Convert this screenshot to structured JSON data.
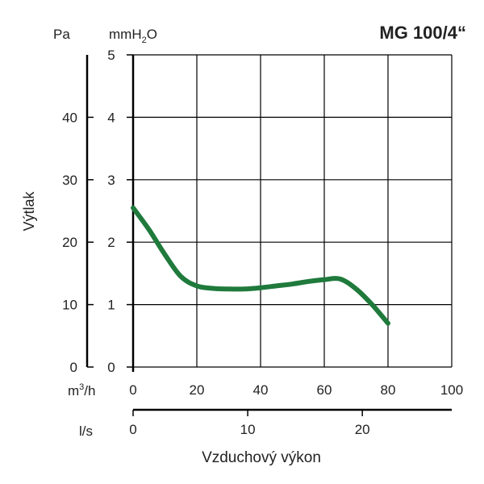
{
  "chart_data": {
    "type": "line",
    "title": "MG 100/4“",
    "xlabel": "Vzduchový výkon",
    "ylabel": "Výtlak",
    "axes": {
      "y_pa": {
        "unit": "Pa",
        "range": [
          0,
          50
        ],
        "ticks": [
          "0",
          "10",
          "20",
          "30",
          "40"
        ]
      },
      "y_mmh2o": {
        "unit_base": "mmH",
        "unit_sub": "2",
        "unit_tail": "O",
        "range": [
          0,
          5
        ],
        "ticks": [
          "0",
          "1",
          "2",
          "3",
          "4",
          "5"
        ]
      },
      "x_m3h": {
        "unit_base": "m",
        "unit_sup": "3",
        "unit_tail": "/h",
        "range": [
          0,
          100
        ],
        "ticks": [
          "0",
          "20",
          "40",
          "60",
          "80",
          "100"
        ]
      },
      "x_ls": {
        "unit": "l/s",
        "range": [
          0,
          27.8
        ],
        "ticks": [
          "0",
          "10",
          "20"
        ]
      }
    },
    "grid": true,
    "series": [
      {
        "x": [
          0,
          5,
          10,
          15,
          20,
          25,
          30,
          35,
          40,
          45,
          50,
          55,
          60,
          65,
          70,
          75,
          80
        ],
        "y": [
          2.55,
          2.2,
          1.8,
          1.45,
          1.3,
          1.26,
          1.25,
          1.25,
          1.27,
          1.3,
          1.33,
          1.37,
          1.4,
          1.41,
          1.25,
          1.0,
          0.7
        ]
      }
    ],
    "colors": {
      "line": "#1f7a3c",
      "grid": "#000000",
      "text": "#222222"
    }
  }
}
